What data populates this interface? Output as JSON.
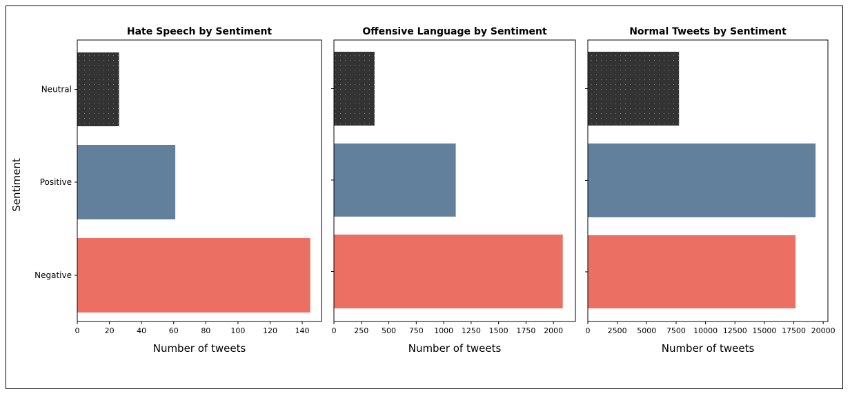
{
  "figure": {
    "ylabel": "Sentiment",
    "categories": [
      "Neutral",
      "Positive",
      "Negative"
    ],
    "colors": {
      "Neutral": "#333333",
      "Positive": "#62809b",
      "Negative": "#eb7063"
    }
  },
  "chart_data": [
    {
      "type": "bar",
      "orientation": "horizontal",
      "title": "Hate Speech by Sentiment",
      "xlabel": "Number of tweets",
      "ylabel": "Sentiment",
      "categories": [
        "Neutral",
        "Positive",
        "Negative"
      ],
      "values": [
        26,
        61,
        145
      ],
      "xlim": [
        0,
        152
      ],
      "xticks": [
        0,
        20,
        40,
        60,
        80,
        100,
        120,
        140
      ],
      "ytick_labels_shown": true
    },
    {
      "type": "bar",
      "orientation": "horizontal",
      "title": "Offensive Language by Sentiment",
      "xlabel": "Number of tweets",
      "ylabel": "",
      "categories": [
        "Neutral",
        "Positive",
        "Negative"
      ],
      "values": [
        370,
        1110,
        2085
      ],
      "xlim": [
        0,
        2200
      ],
      "xticks": [
        0,
        250,
        500,
        750,
        1000,
        1250,
        1500,
        1750,
        2000
      ],
      "ytick_labels_shown": false
    },
    {
      "type": "bar",
      "orientation": "horizontal",
      "title": "Normal Tweets by Sentiment",
      "xlabel": "Number of tweets",
      "ylabel": "",
      "categories": [
        "Neutral",
        "Positive",
        "Negative"
      ],
      "values": [
        7750,
        19350,
        17650
      ],
      "xlim": [
        0,
        20400
      ],
      "xticks": [
        0,
        2500,
        5000,
        7500,
        10000,
        12500,
        15000,
        17500,
        20000
      ],
      "ytick_labels_shown": false
    }
  ]
}
